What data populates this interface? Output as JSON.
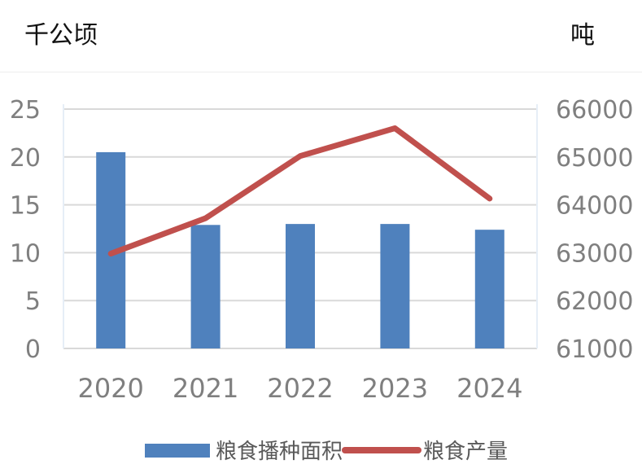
{
  "chart_data": {
    "type": "bar+line",
    "title": "",
    "categories": [
      "2020",
      "2021",
      "2022",
      "2023",
      "2024"
    ],
    "y_left": {
      "unit": "千公顷",
      "ylim": [
        0,
        25
      ],
      "ticks": [
        0,
        5,
        10,
        15,
        20,
        25
      ]
    },
    "y_right": {
      "unit": "吨",
      "ylim": [
        61000,
        66000
      ],
      "ticks": [
        61000,
        62000,
        63000,
        64000,
        65000,
        66000
      ]
    },
    "series": [
      {
        "name": "粮食播种面积",
        "type": "bar",
        "axis": "left",
        "color": "#4f81bd",
        "values": [
          20.5,
          12.9,
          13.0,
          13.0,
          12.4
        ]
      },
      {
        "name": "粮食产量",
        "type": "line",
        "axis": "right",
        "color": "#c0504d",
        "values": [
          62980,
          63720,
          65020,
          65600,
          64130
        ]
      }
    ],
    "grid": true,
    "legend_position": "bottom",
    "tick_color": "#7f7f7f",
    "grid_color": "#d9d9d9"
  }
}
